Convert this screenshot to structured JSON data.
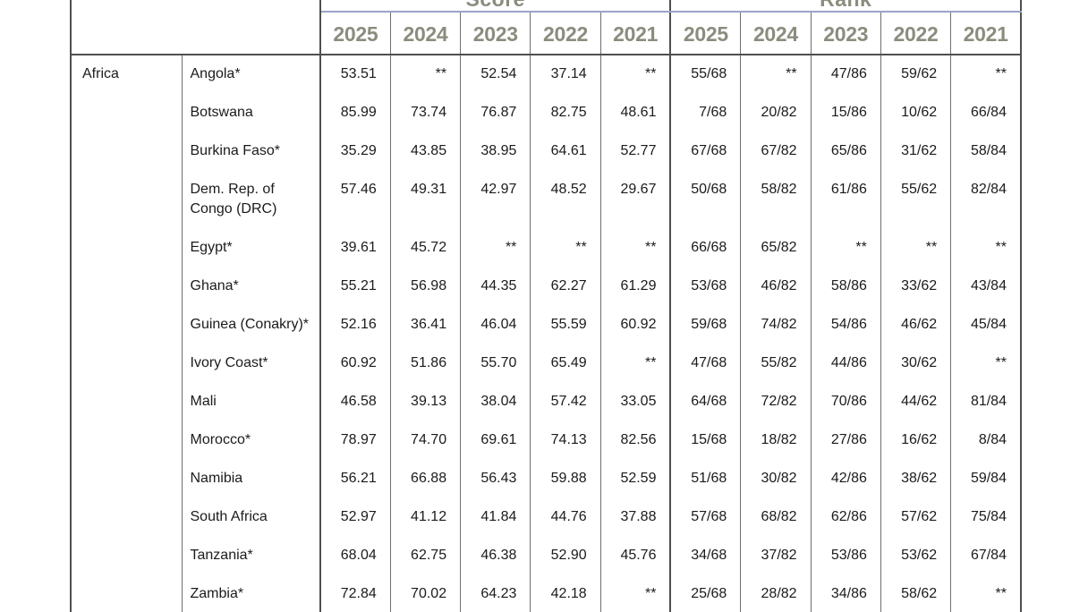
{
  "table": {
    "group_headers": [
      {
        "label": "Score"
      },
      {
        "label": "Rank"
      }
    ],
    "year_headers": [
      "2025",
      "2024",
      "2023",
      "2022",
      "2021",
      "2025",
      "2024",
      "2023",
      "2022",
      "2021"
    ],
    "region": "Africa",
    "missing_marker": "**",
    "rows": [
      {
        "country": "Angola*",
        "score": [
          "53.51",
          "**",
          "52.54",
          "37.14",
          "**"
        ],
        "rank": [
          "55/68",
          "**",
          "47/86",
          "59/62",
          "**"
        ]
      },
      {
        "country": "Botswana",
        "score": [
          "85.99",
          "73.74",
          "76.87",
          "82.75",
          "48.61"
        ],
        "rank": [
          "7/68",
          "20/82",
          "15/86",
          "10/62",
          "66/84"
        ]
      },
      {
        "country": "Burkina Faso*",
        "score": [
          "35.29",
          "43.85",
          "38.95",
          "64.61",
          "52.77"
        ],
        "rank": [
          "67/68",
          "67/82",
          "65/86",
          "31/62",
          "58/84"
        ]
      },
      {
        "country": "Dem. Rep. of Congo (DRC)",
        "score": [
          "57.46",
          "49.31",
          "42.97",
          "48.52",
          "29.67"
        ],
        "rank": [
          "50/68",
          "58/82",
          "61/86",
          "55/62",
          "82/84"
        ]
      },
      {
        "country": "Egypt*",
        "score": [
          "39.61",
          "45.72",
          "**",
          "**",
          "**"
        ],
        "rank": [
          "66/68",
          "65/82",
          "**",
          "**",
          "**"
        ]
      },
      {
        "country": "Ghana*",
        "score": [
          "55.21",
          "56.98",
          "44.35",
          "62.27",
          "61.29"
        ],
        "rank": [
          "53/68",
          "46/82",
          "58/86",
          "33/62",
          "43/84"
        ]
      },
      {
        "country": "Guinea (Conakry)*",
        "score": [
          "52.16",
          "36.41",
          "46.04",
          "55.59",
          "60.92"
        ],
        "rank": [
          "59/68",
          "74/82",
          "54/86",
          "46/62",
          "45/84"
        ]
      },
      {
        "country": "Ivory Coast*",
        "score": [
          "60.92",
          "51.86",
          "55.70",
          "65.49",
          "**"
        ],
        "rank": [
          "47/68",
          "55/82",
          "44/86",
          "30/62",
          "**"
        ]
      },
      {
        "country": "Mali",
        "score": [
          "46.58",
          "39.13",
          "38.04",
          "57.42",
          "33.05"
        ],
        "rank": [
          "64/68",
          "72/82",
          "70/86",
          "44/62",
          "81/84"
        ]
      },
      {
        "country": "Morocco*",
        "score": [
          "78.97",
          "74.70",
          "69.61",
          "74.13",
          "82.56"
        ],
        "rank": [
          "15/68",
          "18/82",
          "27/86",
          "16/62",
          "8/84"
        ]
      },
      {
        "country": "Namibia",
        "score": [
          "56.21",
          "66.88",
          "56.43",
          "59.88",
          "52.59"
        ],
        "rank": [
          "51/68",
          "30/82",
          "42/86",
          "38/62",
          "59/84"
        ]
      },
      {
        "country": "South Africa",
        "score": [
          "52.97",
          "41.12",
          "41.84",
          "44.76",
          "37.88"
        ],
        "rank": [
          "57/68",
          "68/82",
          "62/86",
          "57/62",
          "75/84"
        ]
      },
      {
        "country": "Tanzania*",
        "score": [
          "68.04",
          "62.75",
          "46.38",
          "52.90",
          "45.76"
        ],
        "rank": [
          "34/68",
          "37/82",
          "53/86",
          "53/62",
          "67/84"
        ]
      },
      {
        "country": "Zambia*",
        "score": [
          "72.84",
          "70.02",
          "64.23",
          "42.18",
          "**"
        ],
        "rank": [
          "25/68",
          "28/82",
          "34/86",
          "58/62",
          "**"
        ]
      }
    ],
    "colors": {
      "header_text": "#8b8c7e",
      "group_divider_blue": "#9aa3c9",
      "strong_border": "#4f4f4f",
      "cell_border": "#6e6e6e",
      "body_text": "#1b1b1b",
      "background": "#ffffff"
    }
  }
}
